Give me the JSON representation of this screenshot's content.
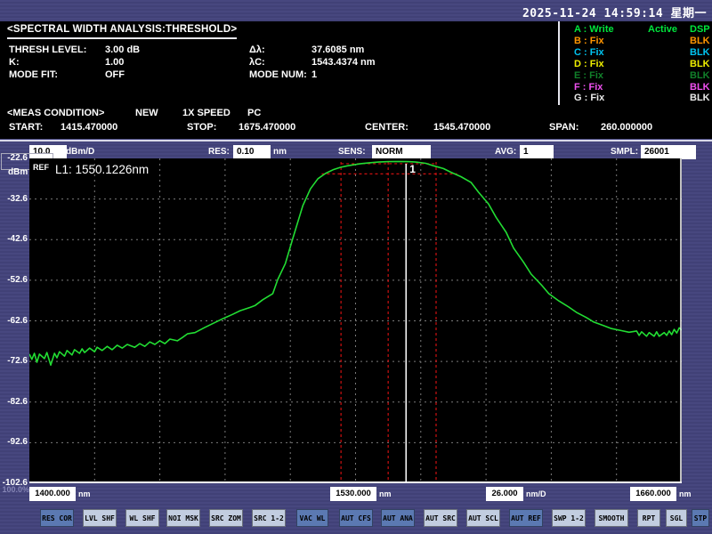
{
  "topbar": {
    "datetime": "2025-11-24 14:59:14 星期一"
  },
  "analysis": {
    "title": "<SPECTRAL WIDTH ANALYSIS:THRESHOLD>",
    "params_left": [
      {
        "label": "THRESH LEVEL:",
        "value": "3.00 dB"
      },
      {
        "label": "K:",
        "value": "1.00"
      },
      {
        "label": "MODE FIT:",
        "value": "OFF"
      }
    ],
    "params_right": [
      {
        "label": "Δλ:",
        "value": "37.6085 nm"
      },
      {
        "label": "λC:",
        "value": "1543.4374 nm"
      },
      {
        "label": "MODE NUM:",
        "value": "1"
      }
    ]
  },
  "traces": {
    "rows": [
      {
        "label": "A : Write",
        "mid": "Active",
        "status": "DSP",
        "color": "#00e63c"
      },
      {
        "label": "B : Fix",
        "mid": "",
        "status": "BLK",
        "color": "#ff9500"
      },
      {
        "label": "C : Fix",
        "mid": "",
        "status": "BLK",
        "color": "#00c4f0"
      },
      {
        "label": "D : Fix",
        "mid": "",
        "status": "BLK",
        "color": "#eeee00"
      },
      {
        "label": "E : Fix",
        "mid": "",
        "status": "BLK",
        "color": "#11802a"
      },
      {
        "label": "F : Fix",
        "mid": "",
        "status": "BLK",
        "color": "#f050f0"
      },
      {
        "label": "G : Fix",
        "mid": "",
        "status": "BLK",
        "color": "#e8e8e8"
      }
    ]
  },
  "meas": {
    "title": "<MEAS CONDITION>",
    "mode": "NEW",
    "speed": "1X SPEED",
    "interface": "PC",
    "fields": [
      {
        "label": "START:",
        "value": "1415.470000"
      },
      {
        "label": "STOP:",
        "value": "1675.470000"
      },
      {
        "label": "CENTER:",
        "value": "1545.470000"
      },
      {
        "label": "SPAN:",
        "value": "260.000000"
      }
    ]
  },
  "settings": {
    "level_scale": "10.0",
    "level_unit": "dBm/D",
    "res_label": "RES:",
    "res": "0.10",
    "res_unit": "nm",
    "sens_label": "SENS:",
    "sens": "NORM",
    "avg_label": "AVG:",
    "avg": "1",
    "smpl_label": "SMPL:",
    "smpl": "26001"
  },
  "plot": {
    "ref_label": "REF",
    "marker_text": "L1: 1550.1226nm",
    "marker_number": "1",
    "y_unit": "dBm",
    "y_percent": "100.0%"
  },
  "xaxis": {
    "labels": [
      {
        "value": "1400.000",
        "unit": "nm"
      },
      {
        "value": "1530.000",
        "unit": "nm"
      },
      {
        "value": "26.000",
        "unit": "nm/D"
      },
      {
        "value": "1660.000",
        "unit": "nm"
      }
    ]
  },
  "buttons": [
    {
      "label": "RES COR",
      "variant": "dark"
    },
    {
      "label": "LVL SHF",
      "variant": "light"
    },
    {
      "label": "WL SHF",
      "variant": "light"
    },
    {
      "label": "NOI MSK",
      "variant": "light"
    },
    {
      "label": "SRC ZOM",
      "variant": "light"
    },
    {
      "label": "SRC 1-2",
      "variant": "light"
    },
    {
      "label": "VAC WL",
      "variant": "dark"
    },
    {
      "label": "AUT CFS",
      "variant": "dark"
    },
    {
      "label": "AUT ANA",
      "variant": "dark"
    },
    {
      "label": "AUT SRC",
      "variant": "light"
    },
    {
      "label": "AUT SCL",
      "variant": "light"
    },
    {
      "label": "AUT REF",
      "variant": "dark"
    },
    {
      "label": "SWP 1-2",
      "variant": "light"
    },
    {
      "label": "SMOOTH",
      "variant": "light"
    },
    {
      "label": "RPT",
      "variant": "light"
    },
    {
      "label": "SGL",
      "variant": "light"
    },
    {
      "label": "STP",
      "variant": "dark"
    }
  ],
  "colors": {
    "background": "#45457d",
    "panel_black": "#000000",
    "trace_green": "#22dd33",
    "marker_red": "#cc1010",
    "grid_gray": "#7a7a7a",
    "white": "#ffffff",
    "button_light": "#c2cde0",
    "button_dark": "#5b79b2"
  },
  "chart_data": {
    "type": "line",
    "title": "SPECTRAL WIDTH ANALYSIS:THRESHOLD",
    "x_axis": {
      "label": "nm",
      "displayed_min": 1400.0,
      "displayed_max": 1660.0,
      "center_label": 1530.0,
      "scale_per_div": 26.0,
      "divisions": 10,
      "meas_start": 1415.47,
      "meas_stop": 1675.47
    },
    "y_axis": {
      "label": "dBm",
      "ref_level": -22.6,
      "min": -102.6,
      "scale_per_div": 10.0,
      "divisions": 8,
      "ticks": [
        "-22.6",
        "-32.6",
        "-42.6",
        "-52.6",
        "-62.6",
        "-72.6",
        "-82.6",
        "-92.6",
        "-102.6"
      ]
    },
    "grid": true,
    "legend_position": "none",
    "markers": {
      "l1_nm": 1550.1226,
      "l1_label": "1",
      "lambda_c_nm": 1543.4374,
      "delta_lambda_nm": 37.6085,
      "threshold_db": 3.0,
      "peak_dbm": -23.4,
      "red_vlines_nm": [
        1524.2,
        1543.0,
        1562.1
      ],
      "red_hlines": [
        {
          "dbm": -23.9,
          "from_nm": 1524.2,
          "to_nm": 1562.1
        },
        {
          "dbm": -26.4,
          "from_nm": 1516.5,
          "to_nm": 1570.5
        }
      ]
    },
    "series": [
      {
        "name": "Trace A",
        "color": "#22dd33",
        "points": [
          [
            1400,
            -70.8
          ],
          [
            1401,
            -72.1
          ],
          [
            1402,
            -70.6
          ],
          [
            1403,
            -72.8
          ],
          [
            1404,
            -70.8
          ],
          [
            1406,
            -71.9
          ],
          [
            1407,
            -70.4
          ],
          [
            1408.5,
            -73.5
          ],
          [
            1410,
            -70.6
          ],
          [
            1411,
            -71.7
          ],
          [
            1412,
            -70.2
          ],
          [
            1414,
            -71.3
          ],
          [
            1415,
            -69.9
          ],
          [
            1417,
            -71.0
          ],
          [
            1418,
            -69.7
          ],
          [
            1420,
            -70.6
          ],
          [
            1421,
            -69.5
          ],
          [
            1422,
            -70.4
          ],
          [
            1424,
            -69.3
          ],
          [
            1426,
            -70.2
          ],
          [
            1427,
            -69.1
          ],
          [
            1429,
            -69.9
          ],
          [
            1431,
            -68.9
          ],
          [
            1433,
            -69.7
          ],
          [
            1435,
            -68.6
          ],
          [
            1437,
            -69.3
          ],
          [
            1439,
            -68.4
          ],
          [
            1442,
            -69.1
          ],
          [
            1444,
            -68.2
          ],
          [
            1446,
            -68.9
          ],
          [
            1448,
            -67.8
          ],
          [
            1450,
            -68.4
          ],
          [
            1452,
            -67.5
          ],
          [
            1454,
            -68.2
          ],
          [
            1456,
            -67.1
          ],
          [
            1459,
            -67.5
          ],
          [
            1461,
            -66.7
          ],
          [
            1463,
            -65.8
          ],
          [
            1466,
            -65.5
          ],
          [
            1470,
            -64.2
          ],
          [
            1473,
            -63.3
          ],
          [
            1477,
            -62.1
          ],
          [
            1481,
            -61.0
          ],
          [
            1484,
            -60.1
          ],
          [
            1488,
            -59.3
          ],
          [
            1490,
            -58.8
          ],
          [
            1493,
            -57.4
          ],
          [
            1497,
            -55.9
          ],
          [
            1499,
            -52.4
          ],
          [
            1502,
            -48.5
          ],
          [
            1505,
            -42.3
          ],
          [
            1509,
            -34.2
          ],
          [
            1512,
            -30.1
          ],
          [
            1515,
            -27.6
          ],
          [
            1518,
            -26.3
          ],
          [
            1521,
            -25.4
          ],
          [
            1524,
            -24.8
          ],
          [
            1527,
            -24.4
          ],
          [
            1532,
            -23.9
          ],
          [
            1536,
            -23.65
          ],
          [
            1539,
            -23.5
          ],
          [
            1543,
            -23.4
          ],
          [
            1547,
            -23.35
          ],
          [
            1551,
            -23.4
          ],
          [
            1554,
            -23.5
          ],
          [
            1558,
            -23.8
          ],
          [
            1561,
            -24.4
          ],
          [
            1565,
            -25.1
          ],
          [
            1568,
            -26.0
          ],
          [
            1572,
            -27.1
          ],
          [
            1576,
            -28.5
          ],
          [
            1579,
            -30.9
          ],
          [
            1583,
            -33.8
          ],
          [
            1586,
            -37.1
          ],
          [
            1590,
            -40.8
          ],
          [
            1593,
            -44.7
          ],
          [
            1597,
            -48.2
          ],
          [
            1600,
            -51.1
          ],
          [
            1604,
            -53.7
          ],
          [
            1607,
            -55.9
          ],
          [
            1611,
            -57.7
          ],
          [
            1615,
            -59.2
          ],
          [
            1618,
            -60.5
          ],
          [
            1622,
            -61.8
          ],
          [
            1625,
            -62.9
          ],
          [
            1629,
            -63.8
          ],
          [
            1632,
            -64.5
          ],
          [
            1636,
            -65.0
          ],
          [
            1639,
            -65.4
          ],
          [
            1642,
            -65.1
          ],
          [
            1643,
            -66.2
          ],
          [
            1644,
            -65.3
          ],
          [
            1646,
            -66.4
          ],
          [
            1647,
            -65.5
          ],
          [
            1649,
            -66.4
          ],
          [
            1650,
            -65.3
          ],
          [
            1651,
            -66.4
          ],
          [
            1653,
            -65.5
          ],
          [
            1654,
            -66.2
          ],
          [
            1655,
            -65.1
          ],
          [
            1656,
            -66.0
          ],
          [
            1657,
            -64.7
          ],
          [
            1658,
            -65.6
          ],
          [
            1659,
            -64.3
          ],
          [
            1660,
            -64.9
          ]
        ]
      }
    ]
  }
}
